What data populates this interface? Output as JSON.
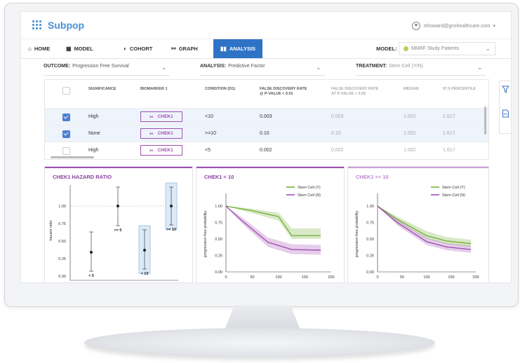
{
  "app": {
    "name": "Subpop",
    "user_email": "mhoward@gnshealthcare.com"
  },
  "nav": {
    "items": [
      {
        "label": "HOME",
        "icon": "home-icon"
      },
      {
        "label": "MODEL",
        "icon": "model-grid-icon"
      },
      {
        "label": "COHORT",
        "icon": "cohort-icon"
      },
      {
        "label": "GRAPH",
        "icon": "graph-icon"
      },
      {
        "label": "ANALYSIS",
        "icon": "bar-chart-icon"
      }
    ],
    "model_label": "MODEL:",
    "model_value": "MMRF Study Patients"
  },
  "filters": {
    "outcome_label": "OUTCOME:",
    "outcome_value": "Progression Free Survival",
    "analysis_label": "ANALYSIS:",
    "analysis_value": "Predictive Factor",
    "treatment_label": "TREATMENT:",
    "treatment_value": "Stem Cell (Y/N)"
  },
  "table": {
    "headers": {
      "significance": "SIGNIFICANCE",
      "biomarker": "BIOMARKER 1",
      "condition": "CONDITION (D1)",
      "fdr1_a": "FALSE DISCOVERY RATE",
      "fdr1_b": "@ P-VALUE < 0.01",
      "fdr2_a": "FALSE DISCOVERY RATE",
      "fdr2_b": "AT P-VALUE < 0.05",
      "median": "MEDIAN",
      "p975": "97.5 PERCENTILE"
    },
    "rows": [
      {
        "significance": "High",
        "biomarker": "CHEK1",
        "condition": "<10",
        "fdr1": "0.003",
        "fdr2": "0.003",
        "median": "1.002",
        "p975": "1.617",
        "checked": true
      },
      {
        "significance": "None",
        "biomarker": "CHEK1",
        "condition": ">=10",
        "fdr1": "0.10",
        "fdr2": "0.10",
        "median": "1.002",
        "p975": "1.617",
        "checked": true
      },
      {
        "significance": "High",
        "biomarker": "CHEK1",
        "condition": "<5",
        "fdr1": "0.002",
        "fdr2": "0.002",
        "median": "1.002",
        "p975": "1.617",
        "checked": false
      }
    ]
  },
  "colors": {
    "accent": "#2f73c6",
    "biomarker": "#a14fb5",
    "green": "#77b13b",
    "purple": "#a14fb5",
    "purple_light": "#c9a0de"
  },
  "chart_data": [
    {
      "type": "scatter",
      "title": "CHEK1 HAZARD RATIO",
      "ylabel": "hazard ratio",
      "ylim": [
        0,
        1.3
      ],
      "yticks": [
        "0.00",
        "0.25",
        "0.50",
        "0.75",
        "1.00"
      ],
      "points": [
        {
          "label": "< 5",
          "value": 0.34,
          "low": 0.07,
          "high": 0.63,
          "highlight": false
        },
        {
          "label": ">= 5",
          "value": 1.0,
          "low": 0.72,
          "high": 1.27,
          "highlight": false
        },
        {
          "label": "< 10",
          "value": 0.37,
          "low": 0.1,
          "high": 0.66,
          "highlight": true
        },
        {
          "label": ">= 10",
          "value": 1.0,
          "low": 0.73,
          "high": 1.27,
          "highlight": true
        }
      ]
    },
    {
      "type": "line",
      "title": "CHEK1 < 10",
      "ylabel": "progression-free probability",
      "xlim": [
        0,
        200
      ],
      "ylim": [
        0,
        1.15
      ],
      "xticks": [
        "0",
        "50",
        "100",
        "150",
        "200"
      ],
      "yticks": [
        "0.00",
        "0.25",
        "0.50",
        "0.75",
        "1.00"
      ],
      "series": [
        {
          "name": "Stem Cell (Y)",
          "x": [
            0,
            50,
            100,
            125,
            180
          ],
          "y": [
            1.0,
            0.93,
            0.84,
            0.55,
            0.55
          ],
          "low": [
            1.0,
            0.89,
            0.78,
            0.5,
            0.5
          ],
          "high": [
            1.0,
            0.96,
            0.9,
            0.66,
            0.66
          ]
        },
        {
          "name": "Stem Cell (N)",
          "x": [
            0,
            30,
            80,
            125,
            180
          ],
          "y": [
            1.0,
            0.78,
            0.45,
            0.34,
            0.33
          ],
          "low": [
            1.0,
            0.74,
            0.38,
            0.27,
            0.26
          ],
          "high": [
            1.0,
            0.83,
            0.52,
            0.42,
            0.41
          ]
        }
      ]
    },
    {
      "type": "line",
      "title": "CHEK1 >= 10",
      "ylabel": "progression-free probability",
      "xlim": [
        0,
        200
      ],
      "ylim": [
        0,
        1.15
      ],
      "xticks": [
        "0",
        "50",
        "100",
        "150",
        "200"
      ],
      "yticks": [
        "0.00",
        "0.25",
        "0.50",
        "0.75",
        "1.00"
      ],
      "series": [
        {
          "name": "Stem Cell (Y)",
          "x": [
            0,
            40,
            100,
            140,
            190
          ],
          "y": [
            1.0,
            0.8,
            0.55,
            0.47,
            0.43
          ],
          "low": [
            1.0,
            0.76,
            0.5,
            0.42,
            0.38
          ],
          "high": [
            1.0,
            0.84,
            0.62,
            0.53,
            0.49
          ]
        },
        {
          "name": "Stem Cell (N)",
          "x": [
            0,
            40,
            100,
            140,
            190
          ],
          "y": [
            1.0,
            0.75,
            0.46,
            0.38,
            0.34
          ],
          "low": [
            1.0,
            0.71,
            0.41,
            0.33,
            0.29
          ],
          "high": [
            1.0,
            0.79,
            0.52,
            0.44,
            0.4
          ]
        }
      ]
    }
  ]
}
